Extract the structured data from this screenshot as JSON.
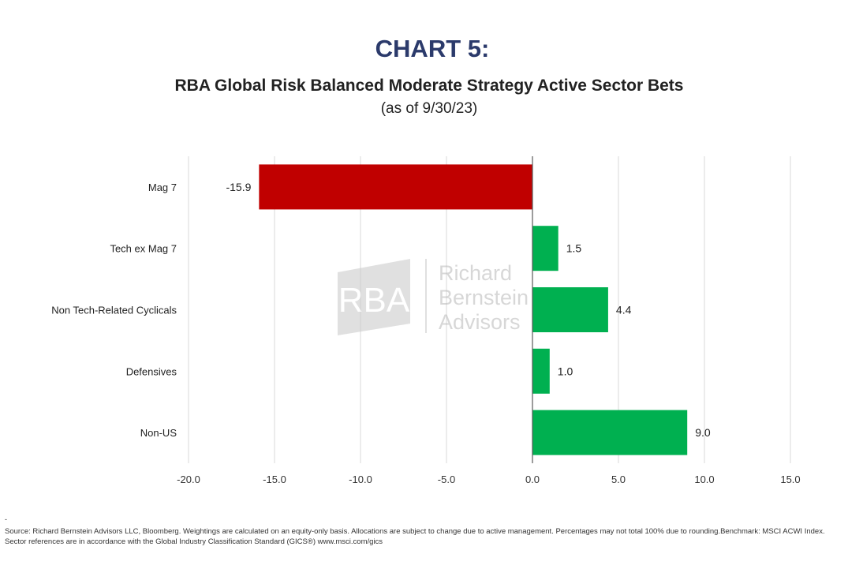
{
  "heading": "CHART 5:",
  "chart_data": {
    "type": "bar",
    "orientation": "horizontal",
    "title": "RBA Global Risk Balanced Moderate Strategy Active Sector Bets",
    "subtitle": "(as of 9/30/23)",
    "categories": [
      "Mag 7",
      "Tech ex Mag 7",
      "Non Tech-Related Cyclicals",
      "Defensives",
      "Non-US"
    ],
    "values": [
      -15.9,
      1.5,
      4.4,
      1.0,
      9.0
    ],
    "value_labels": [
      "-15.9",
      "1.5",
      "4.4",
      "1.0",
      "9.0"
    ],
    "xlim": [
      -20,
      15
    ],
    "xticks": [
      -20,
      -15,
      -10,
      -5,
      0,
      5,
      10,
      15
    ],
    "xtick_labels": [
      "-20.0",
      "-15.0",
      "-10.0",
      "-5.0",
      "0.0",
      "5.0",
      "10.0",
      "15.0"
    ],
    "xlabel": "",
    "ylabel": "",
    "grid": "vertical",
    "legend": "none",
    "colors": {
      "negative": "#c00000",
      "positive": "#00b050",
      "grid": "#d9d9d9",
      "axis": "#595959"
    }
  },
  "watermark": {
    "logo": "RBA",
    "lines": [
      "Richard",
      "Bernstein",
      "Advisors"
    ]
  },
  "footnote": {
    "dash": "-",
    "text": "Source: Richard Bernstein Advisors LLC, Bloomberg. Weightings are calculated on an equity-only basis. Allocations are subject to change due to active management. Percentages may not total 100% due to rounding.Benchmark: MSCI ACWI Index. Sector references are in accordance with the Global Industry Classification Standard (GICS®) www.msci.com/gics"
  }
}
